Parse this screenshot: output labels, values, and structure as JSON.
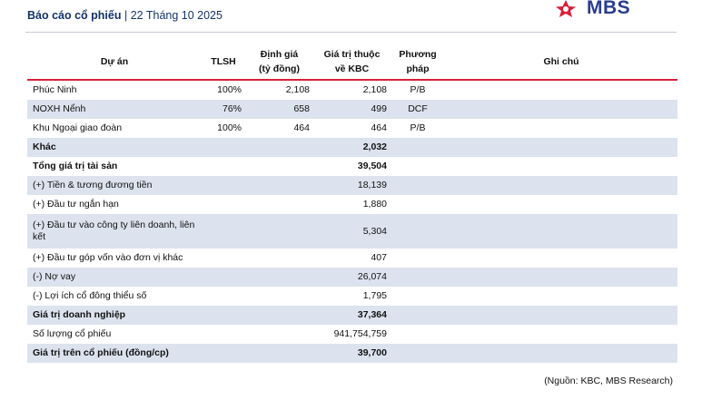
{
  "header": {
    "title": "Báo cáo cổ phiếu",
    "separator": " | ",
    "date": "22 Tháng 10 2025"
  },
  "logo": {
    "text": "MBS",
    "icon": "mbs-star-logo-icon",
    "colors": {
      "red": "#d8203a",
      "blue": "#2a3d8f"
    }
  },
  "table": {
    "headers": {
      "project": "Dự án",
      "tlsh": "TLSH",
      "valuation_l1": "Định giá",
      "valuation_l2": "(tỷ đồng)",
      "kbc_value_l1": "Giá trị thuộc",
      "kbc_value_l2": "về KBC",
      "method_l1": "Phương",
      "method_l2": "pháp",
      "note": "Ghi chú"
    },
    "rows": [
      {
        "project": "Phúc Ninh",
        "tlsh": "100%",
        "valuation": "2,108",
        "kbc_value": "2,108",
        "method": "P/B",
        "note": "",
        "bold": false,
        "shaded": false
      },
      {
        "project": "NOXH Nểnh",
        "tlsh": "76%",
        "valuation": "658",
        "kbc_value": "499",
        "method": "DCF",
        "note": "",
        "bold": false,
        "shaded": true
      },
      {
        "project": "Khu Ngoại giao đoàn",
        "tlsh": "100%",
        "valuation": "464",
        "kbc_value": "464",
        "method": "P/B",
        "note": "",
        "bold": false,
        "shaded": false
      },
      {
        "project": "Khác",
        "tlsh": "",
        "valuation": "",
        "kbc_value": "2,032",
        "method": "",
        "note": "",
        "bold": true,
        "shaded": true
      },
      {
        "project": "Tổng giá trị tài sản",
        "tlsh": "",
        "valuation": "",
        "kbc_value": "39,504",
        "method": "",
        "note": "",
        "bold": true,
        "shaded": false
      },
      {
        "project": "(+) Tiền & tương đương tiền",
        "tlsh": "",
        "valuation": "",
        "kbc_value": "18,139",
        "method": "",
        "note": "",
        "bold": false,
        "shaded": true
      },
      {
        "project": "(+) Đầu tư ngắn hạn",
        "tlsh": "",
        "valuation": "",
        "kbc_value": "1,880",
        "method": "",
        "note": "",
        "bold": false,
        "shaded": false
      },
      {
        "project": "(+) Đầu tư vào công ty liên doanh, liên kết",
        "tlsh": "",
        "valuation": "",
        "kbc_value": "5,304",
        "method": "",
        "note": "",
        "bold": false,
        "shaded": true,
        "tall": true
      },
      {
        "project": "(+) Đầu tư góp vốn vào đơn vị khác",
        "tlsh": "",
        "valuation": "",
        "kbc_value": "407",
        "method": "",
        "note": "",
        "bold": false,
        "shaded": false
      },
      {
        "project": "(-) Nợ vay",
        "tlsh": "",
        "valuation": "",
        "kbc_value": "26,074",
        "method": "",
        "note": "",
        "bold": false,
        "shaded": true
      },
      {
        "project": "(-) Lợi ích cổ đông thiểu số",
        "tlsh": "",
        "valuation": "",
        "kbc_value": "1,795",
        "method": "",
        "note": "",
        "bold": false,
        "shaded": false
      },
      {
        "project": "Giá trị doanh nghiệp",
        "tlsh": "",
        "valuation": "",
        "kbc_value": "37,364",
        "method": "",
        "note": "",
        "bold": true,
        "shaded": true
      },
      {
        "project": "Số lượng cổ phiếu",
        "tlsh": "",
        "valuation": "",
        "kbc_value": "941,754,759",
        "method": "",
        "note": "",
        "bold": false,
        "shaded": false
      },
      {
        "project": "Giá trị trên cổ phiếu (đồng/cp)",
        "tlsh": "",
        "valuation": "",
        "kbc_value": "39,700",
        "method": "",
        "note": "",
        "bold": true,
        "shaded": true
      }
    ]
  },
  "source": "(Nguồn: KBC, MBS Research)"
}
